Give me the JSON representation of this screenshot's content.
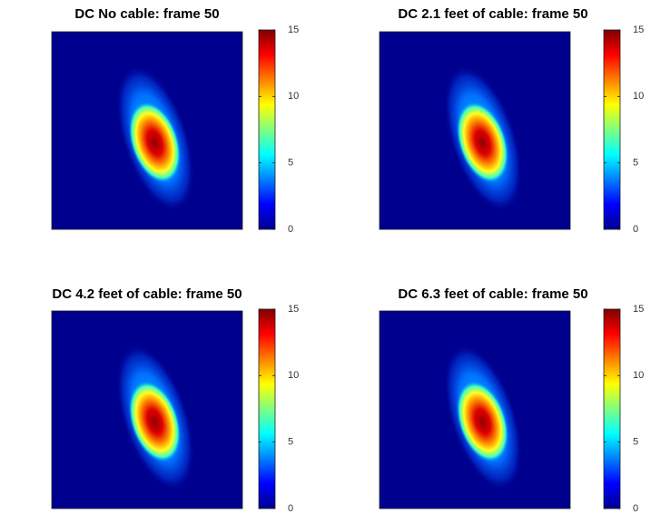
{
  "chart_data": [
    {
      "type": "image",
      "title": "DC No cable: frame 50",
      "clim": [
        0,
        15
      ],
      "cticks": [
        0,
        5,
        10,
        15
      ]
    },
    {
      "type": "image",
      "title": "DC 2.1 feet of cable: frame 50",
      "clim": [
        0,
        15
      ],
      "cticks": [
        0,
        5,
        10,
        15
      ]
    },
    {
      "type": "image",
      "title": "DC 4.2 feet of cable: frame 50",
      "clim": [
        0,
        15
      ],
      "cticks": [
        0,
        5,
        10,
        15
      ]
    },
    {
      "type": "image",
      "title": "DC 6.3 feet of cable: frame 50",
      "clim": [
        0,
        15
      ],
      "cticks": [
        0,
        5,
        10,
        15
      ]
    }
  ]
}
